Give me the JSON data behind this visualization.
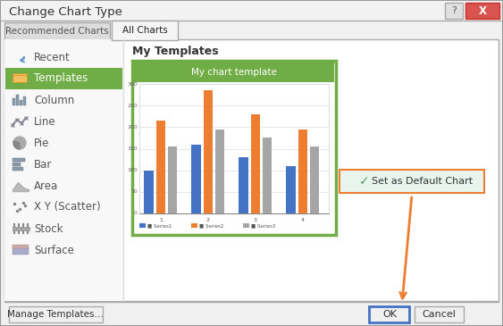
{
  "title": "Change Chart Type",
  "bg_color": "#e8e8e8",
  "tab_recommended": "Recommended Charts",
  "tab_all": "All Charts",
  "left_items": [
    "Recent",
    "Templates",
    "Column",
    "Line",
    "Pie",
    "Bar",
    "Area",
    "X Y (Scatter)",
    "Stock",
    "Surface"
  ],
  "templates_label": "My Templates",
  "chart_title": "My chart template",
  "series1_color": "#4472c4",
  "series2_color": "#ed7d31",
  "series3_color": "#a5a5a5",
  "series1_data": [
    100,
    160,
    130,
    110
  ],
  "series2_data": [
    215,
    285,
    230,
    195
  ],
  "series3_data": [
    155,
    195,
    175,
    155
  ],
  "legend_labels": [
    "Series1",
    "Series2",
    "Series3"
  ],
  "set_default_text": "Set as Default Chart",
  "set_default_bg": "#e8f5ee",
  "set_default_border": "#ed7d31",
  "checkmark_color": "#5a9e6f",
  "arrow_color": "#ed7d31",
  "ok_text": "OK",
  "cancel_text": "Cancel",
  "manage_text": "Manage Templates...",
  "selected_item": "Templates",
  "selected_item_bg": "#70ad47",
  "selected_item_fg": "#ffffff",
  "chart_border_color": "#70ad47",
  "chart_header_color": "#70ad47"
}
